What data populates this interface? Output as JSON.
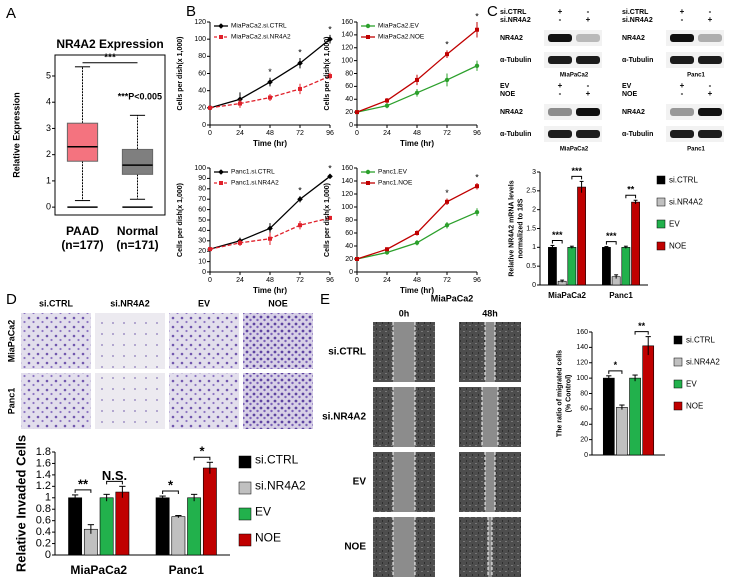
{
  "chart_data": [
    {
      "type": "box",
      "panel": "A",
      "title": "NR4A2 Expression",
      "ylabel": "Relative Expression",
      "categories": [
        "PAAD",
        "Normal"
      ],
      "category_notes": [
        "(n=177)",
        "(n=171)"
      ],
      "colors": [
        "#f4737f",
        "#7f7f7f"
      ],
      "label_colors": [
        "#f4737f",
        "#000000"
      ],
      "min": [
        0.25,
        0.3
      ],
      "q1": [
        1.75,
        1.25
      ],
      "median": [
        2.3,
        1.6
      ],
      "q3": [
        3.2,
        2.2
      ],
      "max": [
        5.35,
        3.5
      ],
      "floor": [
        0,
        0
      ],
      "ylim": [
        -0.3,
        5.8
      ],
      "yticks": [
        0,
        1,
        2,
        3,
        4,
        5
      ],
      "sig": "***",
      "note": "***P<0.005"
    },
    {
      "type": "line",
      "panel": "B",
      "xlabel": "Time (hr)",
      "ylabel": "Cells per dish(x 1,000)",
      "x": [
        0,
        24,
        48,
        72,
        96
      ],
      "xlim": [
        0,
        96
      ],
      "xticks": [
        0,
        24,
        48,
        72,
        96
      ],
      "ylim": [
        0,
        120
      ],
      "yticks": [
        0,
        20,
        40,
        60,
        80,
        100,
        120
      ],
      "legend": "upper left",
      "series": [
        {
          "name": "MiaPaCa2.si.CTRL",
          "color": "#000000",
          "linestyle": "solid",
          "marker": "diamond",
          "values": [
            20,
            30,
            50,
            72,
            100
          ],
          "errors": [
            0,
            8,
            5,
            6,
            5
          ]
        },
        {
          "name": "MiaPaCa2.si.NR4A2",
          "color": "#e0202a",
          "linestyle": "dashed",
          "marker": "square",
          "values": [
            20,
            25,
            32,
            42,
            57
          ],
          "errors": [
            0,
            5,
            4,
            6,
            4
          ]
        }
      ],
      "stars": [
        {
          "x": 48,
          "label": "*"
        },
        {
          "x": 72,
          "label": "*"
        },
        {
          "x": 96,
          "label": "*"
        }
      ]
    },
    {
      "type": "line",
      "xlabel": "Time (hr)",
      "ylabel": "Cells per dish(x 1,000)",
      "x": [
        0,
        24,
        48,
        72,
        96
      ],
      "xlim": [
        0,
        96
      ],
      "xticks": [
        0,
        24,
        48,
        72,
        96
      ],
      "ylim": [
        0,
        160
      ],
      "yticks": [
        0,
        20,
        40,
        60,
        80,
        100,
        120,
        140,
        160
      ],
      "legend": "upper left",
      "series": [
        {
          "name": "MiaPaCa2.EV",
          "color": "#2ca02c",
          "linestyle": "solid",
          "marker": "circle",
          "values": [
            20,
            30,
            50,
            70,
            92
          ],
          "errors": [
            2,
            4,
            6,
            10,
            8
          ]
        },
        {
          "name": "MiaPaCa2.NOE",
          "color": "#c00000",
          "linestyle": "solid",
          "marker": "square",
          "values": [
            20,
            38,
            70,
            110,
            148
          ],
          "errors": [
            2,
            4,
            8,
            6,
            12
          ]
        }
      ],
      "stars": [
        {
          "x": 72,
          "label": "*"
        },
        {
          "x": 96,
          "label": "*"
        }
      ]
    },
    {
      "type": "line",
      "xlabel": "Time (hr)",
      "ylabel": "Cells per dish(x 1,000)",
      "x": [
        0,
        24,
        48,
        72,
        96
      ],
      "xlim": [
        0,
        96
      ],
      "xticks": [
        0,
        24,
        48,
        72,
        96
      ],
      "ylim": [
        0,
        100
      ],
      "yticks": [
        0,
        10,
        20,
        30,
        40,
        50,
        60,
        70,
        80,
        90,
        100
      ],
      "legend": "upper left",
      "series": [
        {
          "name": "Panc1.si.CTRL",
          "color": "#000000",
          "linestyle": "solid",
          "marker": "diamond",
          "values": [
            22,
            30,
            42,
            70,
            92
          ],
          "errors": [
            0,
            3,
            5,
            3,
            2
          ]
        },
        {
          "name": "Panc1.si.NR4A2",
          "color": "#e0202a",
          "linestyle": "dashed",
          "marker": "square",
          "values": [
            22,
            28,
            32,
            45,
            52
          ],
          "errors": [
            0,
            3,
            6,
            4,
            2
          ]
        }
      ],
      "stars": [
        {
          "x": 72,
          "label": "*"
        },
        {
          "x": 96,
          "label": "*"
        }
      ]
    },
    {
      "type": "line",
      "xlabel": "Time (hr)",
      "ylabel": "Cells per dish(x 1,000)",
      "x": [
        0,
        24,
        48,
        72,
        96
      ],
      "xlim": [
        0,
        96
      ],
      "xticks": [
        0,
        24,
        48,
        72,
        96
      ],
      "ylim": [
        0,
        160
      ],
      "yticks": [
        0,
        20,
        40,
        60,
        80,
        100,
        120,
        140,
        160
      ],
      "legend": "upper left",
      "series": [
        {
          "name": "Panc1.EV",
          "color": "#2ca02c",
          "linestyle": "solid",
          "marker": "circle",
          "values": [
            20,
            30,
            45,
            72,
            92
          ],
          "errors": [
            1,
            3,
            4,
            5,
            6
          ]
        },
        {
          "name": "Panc1.NOE",
          "color": "#c00000",
          "linestyle": "solid",
          "marker": "square",
          "values": [
            20,
            35,
            60,
            108,
            132
          ],
          "errors": [
            1,
            3,
            4,
            5,
            5
          ]
        }
      ],
      "stars": [
        {
          "x": 72,
          "label": "*"
        },
        {
          "x": 96,
          "label": "*"
        }
      ]
    },
    {
      "type": "bar",
      "ylabel": [
        "Relative NR4A2 mRNA levels",
        "normalized to 18S"
      ],
      "categories": [
        "MiaPaCa2",
        "Panc1"
      ],
      "ylim": [
        0,
        3
      ],
      "yticks": [
        0,
        0.5,
        1,
        1.5,
        2,
        2.5,
        3
      ],
      "legend": "right",
      "series": [
        {
          "name": "si.CTRL",
          "color": "#000000",
          "values": [
            1,
            1
          ],
          "errors": [
            0.05,
            0.02
          ]
        },
        {
          "name": "si.NR4A2",
          "color": "#c0c0c0",
          "values": [
            0.1,
            0.22
          ],
          "errors": [
            0.03,
            0.05
          ]
        },
        {
          "name": "EV",
          "color": "#22b14c",
          "values": [
            1,
            1
          ],
          "errors": [
            0.03,
            0.03
          ]
        },
        {
          "name": "NOE",
          "color": "#c00000",
          "values": [
            2.6,
            2.2
          ],
          "errors": [
            0.15,
            0.05
          ]
        }
      ],
      "significance": [
        [
          "***",
          "***"
        ],
        [
          "***",
          "**"
        ]
      ]
    },
    {
      "type": "bar",
      "ylabel": "Relative Invaded Cells",
      "categories": [
        "MiaPaCa2",
        "Panc1"
      ],
      "ylim": [
        0,
        1.8
      ],
      "yticks": [
        0,
        0.2,
        0.4,
        0.6,
        0.8,
        1,
        1.2,
        1.4,
        1.6,
        1.8
      ],
      "legend": "right",
      "series": [
        {
          "name": "si.CTRL",
          "color": "#000000",
          "values": [
            1,
            1
          ],
          "errors": [
            0.05,
            0.03
          ]
        },
        {
          "name": "si.NR4A2",
          "color": "#c0c0c0",
          "values": [
            0.45,
            0.67
          ],
          "errors": [
            0.08,
            0.02
          ]
        },
        {
          "name": "EV",
          "color": "#22b14c",
          "values": [
            1,
            1
          ],
          "errors": [
            0.06,
            0.06
          ]
        },
        {
          "name": "NOE",
          "color": "#c00000",
          "values": [
            1.1,
            1.52
          ],
          "errors": [
            0.1,
            0.1
          ]
        }
      ],
      "significance": [
        [
          "**",
          "N.S."
        ],
        [
          "*",
          "*"
        ]
      ]
    },
    {
      "type": "bar",
      "ylabel": [
        "The ratio of migrated cells",
        "(% Control)"
      ],
      "categories": [
        null
      ],
      "ylim": [
        0,
        160
      ],
      "yticks": [
        0,
        20,
        40,
        60,
        80,
        100,
        120,
        140,
        160
      ],
      "legend": "right",
      "series": [
        {
          "name": "si.CTRL",
          "color": "#000000",
          "values": [
            100
          ],
          "errors": [
            3
          ]
        },
        {
          "name": "si.NR4A2",
          "color": "#c0c0c0",
          "values": [
            62
          ],
          "errors": [
            3
          ]
        },
        {
          "name": "EV",
          "color": "#22b14c",
          "values": [
            100
          ],
          "errors": [
            4
          ]
        },
        {
          "name": "NOE",
          "color": "#c00000",
          "values": [
            142
          ],
          "errors": [
            12
          ]
        }
      ],
      "significance": [
        [
          "*",
          "**"
        ]
      ]
    }
  ],
  "blots": {
    "panel": "C",
    "items": [
      {
        "conditions": [
          {
            "name": "si.CTRL",
            "lanes": [
              "+",
              "-"
            ]
          },
          {
            "name": "si.NR4A2",
            "lanes": [
              "-",
              "+"
            ]
          }
        ],
        "bands": [
          "NR4A2",
          "α-Tubulin"
        ],
        "cell": "MiaPaCa2"
      },
      {
        "conditions": [
          {
            "name": "si.CTRL",
            "lanes": [
              "+",
              "-"
            ]
          },
          {
            "name": "si.NR4A2",
            "lanes": [
              "-",
              "+"
            ]
          }
        ],
        "bands": [
          "NR4A2",
          "α-Tubulin"
        ],
        "cell": "Panc1"
      },
      {
        "conditions": [
          {
            "name": "EV",
            "lanes": [
              "+",
              "-"
            ]
          },
          {
            "name": "NOE",
            "lanes": [
              "-",
              "+"
            ]
          }
        ],
        "bands": [
          "NR4A2",
          "α-Tubulin"
        ],
        "cell": "MiaPaCa2"
      },
      {
        "conditions": [
          {
            "name": "EV",
            "lanes": [
              "+",
              "-"
            ]
          },
          {
            "name": "NOE",
            "lanes": [
              "-",
              "+"
            ]
          }
        ],
        "bands": [
          "NR4A2",
          "α-Tubulin"
        ],
        "cell": "Panc1"
      }
    ]
  },
  "invasion_images": {
    "panel": "D",
    "columns": [
      "si.CTRL",
      "si.NR4A2",
      "EV",
      "NOE"
    ],
    "rows": [
      "MiaPaCa2",
      "Panc1"
    ]
  },
  "wound_images": {
    "panel": "E",
    "title": "MiaPaCa2",
    "columns": [
      "0h",
      "48h"
    ],
    "rows": [
      "si.CTRL",
      "si.NR4A2",
      "EV",
      "NOE"
    ]
  }
}
